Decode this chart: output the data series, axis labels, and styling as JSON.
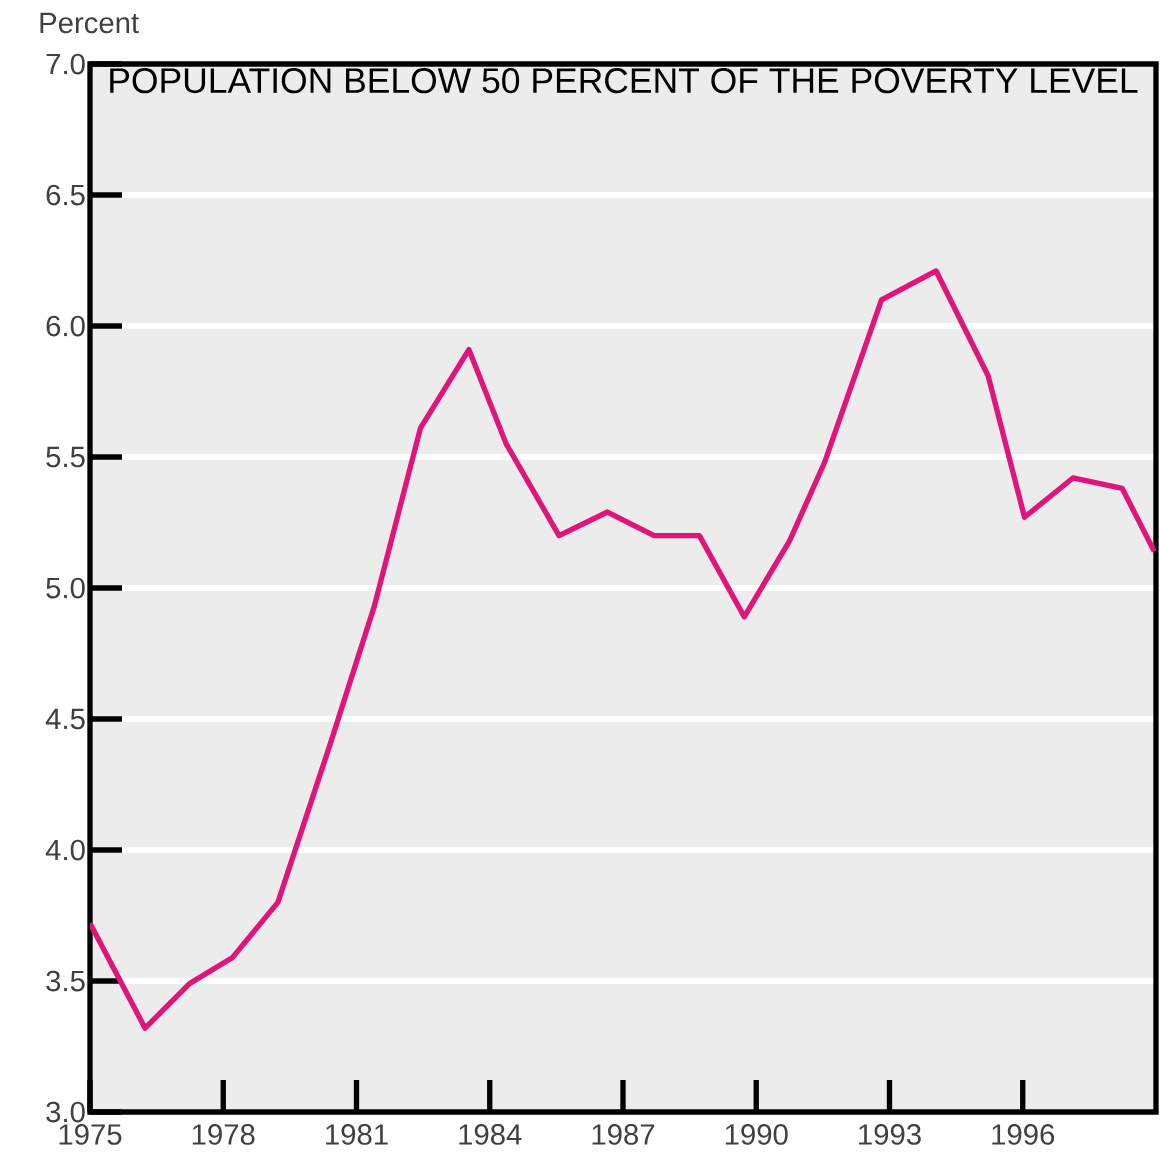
{
  "chart_data": {
    "type": "line",
    "title": "POPULATION BELOW 50 PERCENT OF THE POVERTY LEVEL",
    "ylabel": "Percent",
    "x": [
      1975,
      1976.24,
      1977.24,
      1978.21,
      1979.23,
      1980.4,
      1981.4,
      1982.44,
      1983.53,
      1984.37,
      1985.56,
      1986.65,
      1987.7,
      1988.72,
      1989.73,
      1990.75,
      1991.54,
      1992.82,
      1994.05,
      1995.22,
      1996.04,
      1997.13,
      1998.24,
      1998.96
    ],
    "values": [
      3.72,
      3.32,
      3.49,
      3.59,
      3.8,
      4.4,
      4.93,
      5.61,
      5.91,
      5.55,
      5.2,
      5.29,
      5.2,
      5.2,
      4.89,
      5.18,
      5.48,
      6.1,
      6.21,
      5.81,
      5.27,
      5.42,
      5.38,
      5.14
    ],
    "color": "#e0147a",
    "xlim": [
      1975,
      1999
    ],
    "ylim": [
      3.0,
      7.0
    ],
    "xticks": [
      1975,
      1978,
      1981,
      1984,
      1987,
      1990,
      1993,
      1996
    ],
    "yticks": [
      {
        "value": 3.0,
        "label": "3.0"
      },
      {
        "value": 3.5,
        "label": "3.5"
      },
      {
        "value": 4.0,
        "label": "4.0"
      },
      {
        "value": 4.5,
        "label": "4.5"
      },
      {
        "value": 5.0,
        "label": "5.0"
      },
      {
        "value": 5.5,
        "label": "5.5"
      },
      {
        "value": 6.0,
        "label": "6.0"
      },
      {
        "value": 6.5,
        "label": "6.5"
      },
      {
        "value": 7.0,
        "label": "7.0"
      }
    ],
    "grid": "y"
  }
}
